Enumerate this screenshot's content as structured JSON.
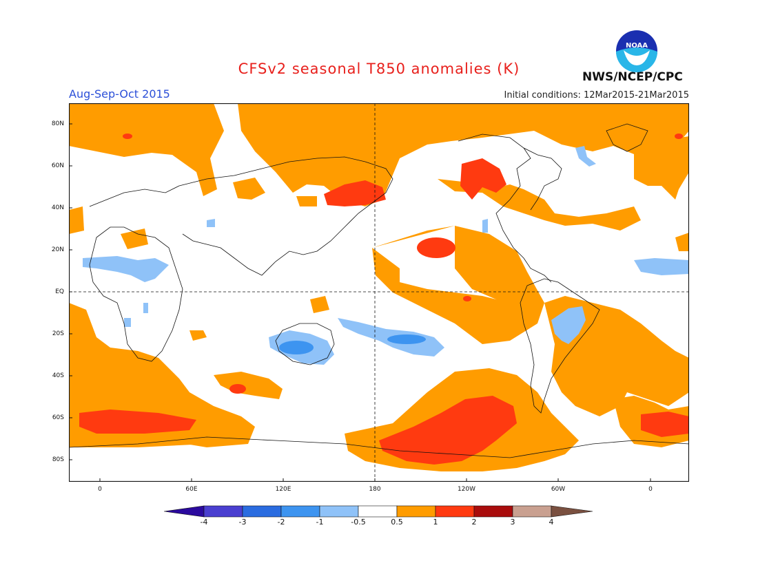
{
  "title": "CFSv2 seasonal T850 anomalies (K)",
  "period": "Aug-Sep-Oct 2015",
  "initial_conditions": "Initial conditions: 12Mar2015-21Mar2015",
  "agency": "NWS/NCEP/CPC",
  "logo_text": "NOAA",
  "lat_labels": [
    "80N",
    "60N",
    "40N",
    "20N",
    "EQ",
    "20S",
    "40S",
    "60S",
    "80S"
  ],
  "lon_labels": [
    "0",
    "60E",
    "120E",
    "180",
    "120W",
    "60W",
    "0"
  ],
  "colorbar": {
    "labels": [
      "-4",
      "-3",
      "-2",
      "-1",
      "-0.5",
      "0.5",
      "1",
      "2",
      "3",
      "4"
    ],
    "colors": [
      "#2b0a9e",
      "#4a3fd0",
      "#2a6ce0",
      "#3d94f0",
      "#8fc2f8",
      "#ffffff",
      "#ff9c00",
      "#ff3a10",
      "#a90c0c",
      "#c9a090",
      "#7a5040"
    ]
  },
  "colors": {
    "warm1": "#ff9c00",
    "warm2": "#ff3a10",
    "warm3": "#a90c0c",
    "cool1": "#8fc2f8",
    "cool2": "#3d94f0",
    "title": "#e8201c",
    "period": "#2b4fd8"
  }
}
